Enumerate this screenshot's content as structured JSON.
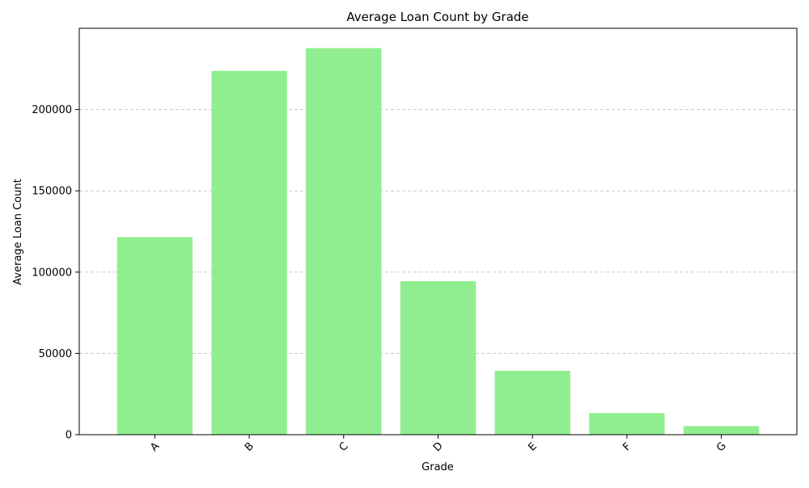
{
  "chart_data": {
    "type": "bar",
    "title": "Average Loan Count by Grade",
    "xlabel": "Grade",
    "ylabel": "Average Loan Count",
    "categories": [
      "A",
      "B",
      "C",
      "D",
      "E",
      "F",
      "G"
    ],
    "values": [
      121500,
      223800,
      237800,
      94400,
      39300,
      13300,
      5300
    ],
    "ylim": [
      0,
      250000
    ],
    "yticks": [
      0,
      50000,
      100000,
      150000,
      200000
    ],
    "ytick_labels": [
      "0",
      "50000",
      "100000",
      "150000",
      "200000"
    ],
    "bar_color": "#90ee90",
    "grid": {
      "axis": "y",
      "style": "dashed",
      "color": "#c8c8c8"
    },
    "xtick_rotation_deg": 45
  }
}
